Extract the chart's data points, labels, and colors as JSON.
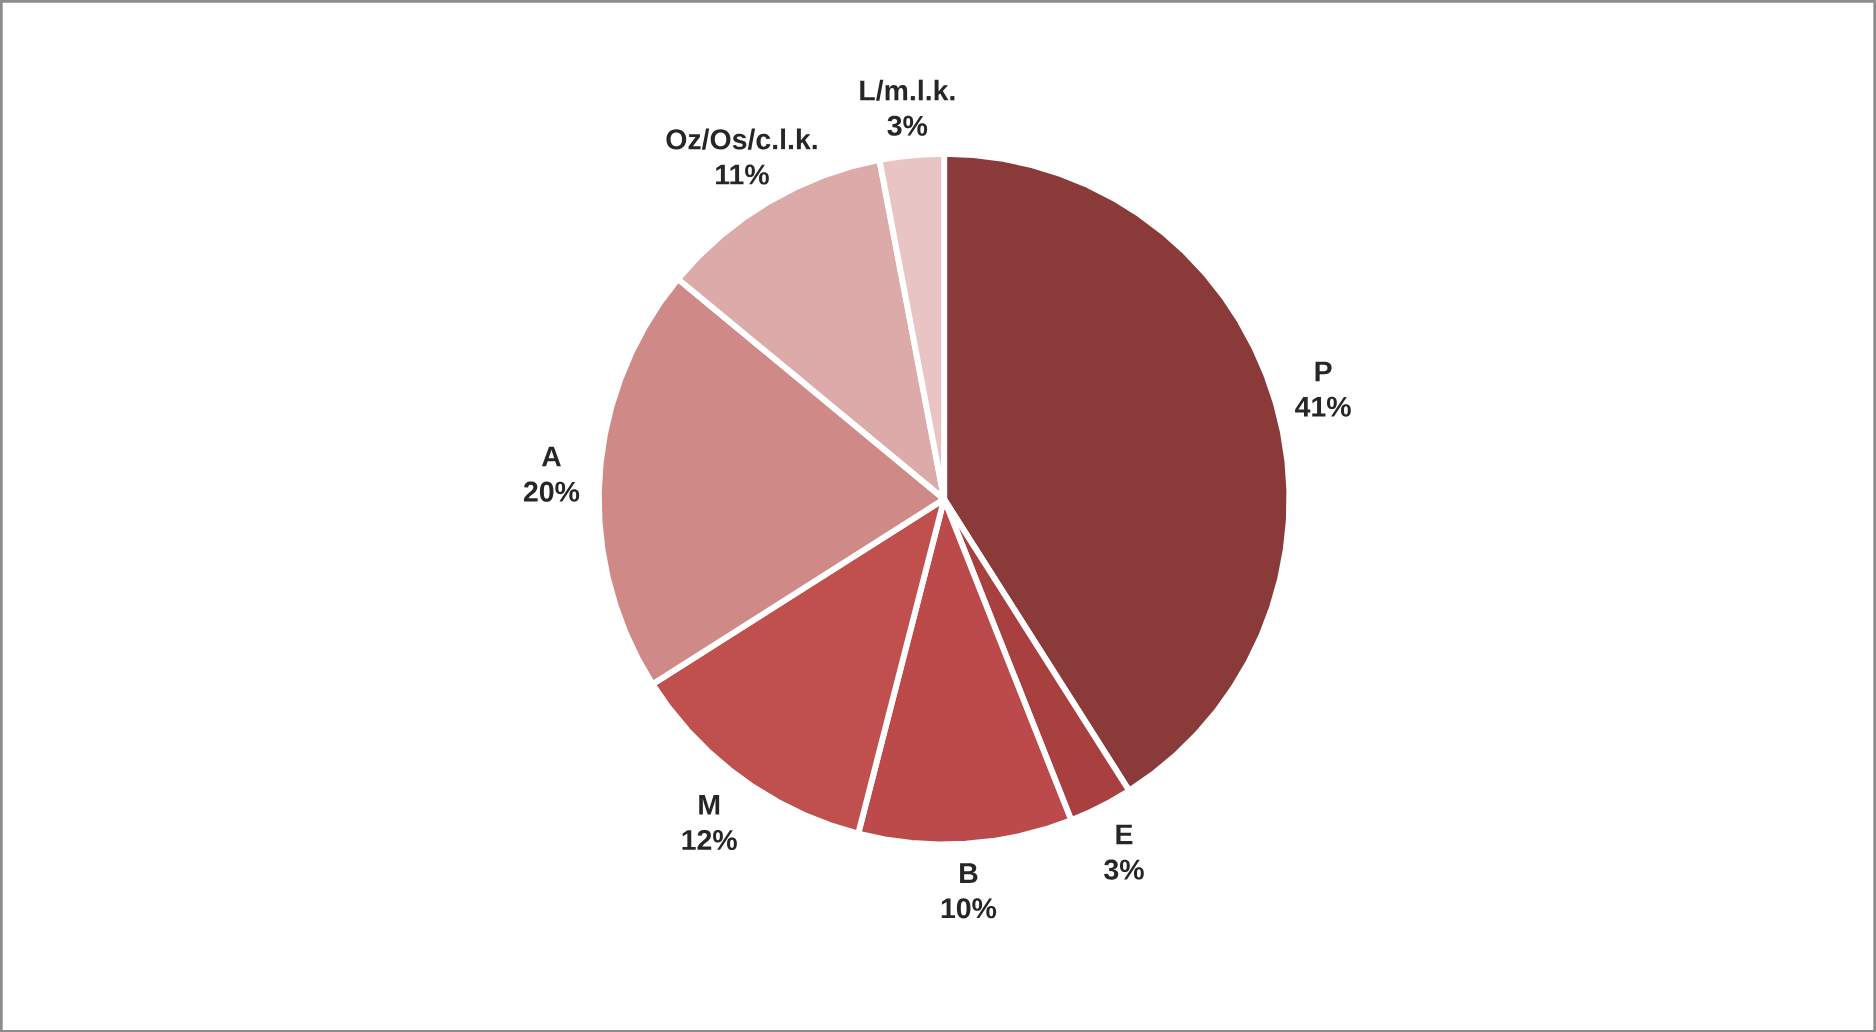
{
  "chart_data": {
    "type": "pie",
    "categories": [
      "P",
      "E",
      "B",
      "M",
      "A",
      "Oz/Os/c.l.k.",
      "L/m.l.k."
    ],
    "values": [
      41,
      3,
      10,
      12,
      20,
      11,
      3
    ],
    "value_labels": [
      "41%",
      "3%",
      "10%",
      "12%",
      "20%",
      "11%",
      "3%"
    ],
    "colors": [
      "#8b3a3a",
      "#a94040",
      "#bc4a4a",
      "#c0504d",
      "#cf8a88",
      "#ddaaaa",
      "#e8c4c4"
    ]
  }
}
